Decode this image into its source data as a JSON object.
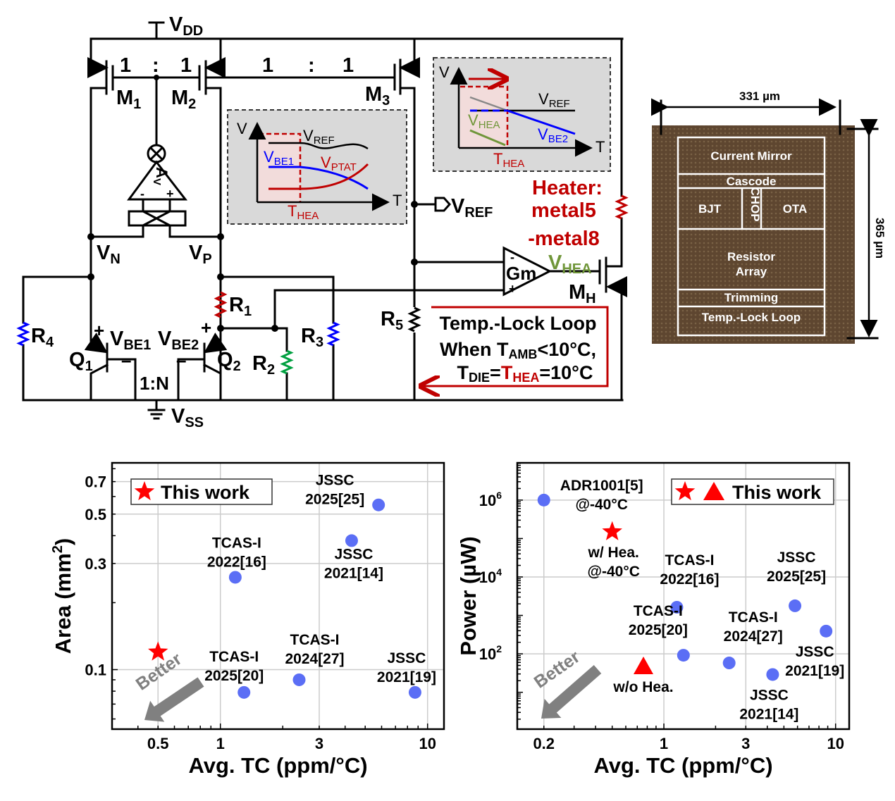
{
  "circuit": {
    "vdd": {
      "m": "V",
      "s": "DD"
    },
    "vss": {
      "m": "V",
      "s": "SS"
    },
    "ratio_left": [
      "1",
      ":",
      "1"
    ],
    "ratio_right": [
      "1",
      ":",
      "1"
    ],
    "m1": {
      "m": "M",
      "s": "1"
    },
    "m2": {
      "m": "M",
      "s": "2"
    },
    "m3": {
      "m": "M",
      "s": "3"
    },
    "mh": {
      "m": "M",
      "s": "H"
    },
    "amp": {
      "m": "A",
      "s": "V",
      "minus": "-",
      "plus": "+"
    },
    "vn": {
      "m": "V",
      "s": "N"
    },
    "vp": {
      "m": "V",
      "s": "P"
    },
    "r1": {
      "m": "R",
      "s": "1"
    },
    "r2": {
      "m": "R",
      "s": "2"
    },
    "r3": {
      "m": "R",
      "s": "3"
    },
    "r4": {
      "m": "R",
      "s": "4"
    },
    "r5": {
      "m": "R",
      "s": "5"
    },
    "q1": {
      "m": "Q",
      "s": "1"
    },
    "q2": {
      "m": "Q",
      "s": "2"
    },
    "vbe1": {
      "plus": "+",
      "m": "V",
      "s": "BE1",
      "minus": "–"
    },
    "vbe2": {
      "plus": "+",
      "m": "V",
      "s": "BE2",
      "minus": "–"
    },
    "bjt_ratio": "1:N",
    "vref_out": {
      "m": "V",
      "s": "REF"
    },
    "gm": {
      "label": "Gm",
      "minus": "-",
      "plus": "+"
    },
    "vhea": {
      "m": "V",
      "s": "HEA"
    },
    "heater": [
      "Heater:",
      "metal5",
      "-metal8"
    ],
    "loop": {
      "title": "Temp.-Lock Loop",
      "line2": {
        "a": "When T",
        "sub": "AMB",
        "b": "<10°C,"
      },
      "line3": {
        "a": "T",
        "sub1": "DIE",
        "eq": "=",
        "t": "T",
        "sub2": "HEA",
        "b": "=10°C"
      }
    },
    "inset1": {
      "v": "V",
      "t": "T",
      "vref": {
        "m": "V",
        "s": "REF"
      },
      "vbe1": {
        "m": "V",
        "s": "BE1"
      },
      "vptat": {
        "m": "V",
        "s": "PTAT"
      },
      "thea": {
        "m": "T",
        "s": "HEA"
      }
    },
    "inset2": {
      "v": "V",
      "t": "T",
      "vref": {
        "m": "V",
        "s": "REF"
      },
      "vhea": {
        "m": "V",
        "s": "HEA"
      },
      "vbe2": {
        "m": "V",
        "s": "BE2"
      },
      "thea": {
        "m": "T",
        "s": "HEA"
      }
    },
    "colors": {
      "heater": "#c00000",
      "ptat": "#c00000",
      "vbe": "#0000ff",
      "vhea": "#70963a",
      "inset_bg": "#d9d9d9"
    }
  },
  "die": {
    "width_label": "331 µm",
    "height_label": "365 µm",
    "blocks": [
      "Current Mirror",
      "Cascode",
      "BJT",
      "CHOP",
      "OTA",
      "Resistor",
      "Array",
      "Trimming",
      "Temp.-Lock Loop"
    ]
  },
  "chart_data": [
    {
      "type": "scatter",
      "xlabel": "Avg. TC (ppm/°C)",
      "ylabel": "Area (mm",
      "ylabel_sup": "2",
      "ylabel_end": ")",
      "xscale": "log",
      "yscale": "log",
      "xlim": [
        0.3,
        12
      ],
      "ylim": [
        0.054,
        0.85
      ],
      "xticks": [
        0.5,
        1,
        3,
        10
      ],
      "xtick_labels": [
        "0.5",
        "1",
        "3",
        "10"
      ],
      "yticks": [
        0.1,
        0.3,
        0.5,
        0.7
      ],
      "ytick_labels": [
        "0.1",
        "0.3",
        "0.5",
        "0.7"
      ],
      "grid": true,
      "legend": {
        "position": "top-left",
        "label": "This work"
      },
      "arrow_text": "Better",
      "points": [
        {
          "x": 0.5,
          "y": 0.12,
          "marker": "star",
          "color": "#ff0000",
          "label": []
        },
        {
          "x": 1.18,
          "y": 0.26,
          "marker": "circle",
          "color": "#5b6ef5",
          "label": [
            "TCAS-I",
            "2022[16]"
          ]
        },
        {
          "x": 4.3,
          "y": 0.38,
          "marker": "circle",
          "color": "#5b6ef5",
          "label": [
            "JSSC",
            "2021[14]"
          ]
        },
        {
          "x": 5.8,
          "y": 0.55,
          "marker": "circle",
          "color": "#5b6ef5",
          "label": [
            "JSSC",
            "2025[25]"
          ]
        },
        {
          "x": 1.3,
          "y": 0.079,
          "marker": "circle",
          "color": "#5b6ef5",
          "label": [
            "TCAS-I",
            "2025[20]"
          ]
        },
        {
          "x": 2.4,
          "y": 0.09,
          "marker": "circle",
          "color": "#5b6ef5",
          "label": [
            "TCAS-I",
            "2024[27]"
          ]
        },
        {
          "x": 8.7,
          "y": 0.079,
          "marker": "circle",
          "color": "#5b6ef5",
          "label": [
            "JSSC",
            "2021[19]"
          ]
        }
      ]
    },
    {
      "type": "scatter",
      "xlabel": "Avg. TC (ppm/°C)",
      "ylabel": "Power (µW)",
      "xscale": "log",
      "yscale": "log",
      "xlim": [
        0.14,
        12
      ],
      "ylim": [
        1.1,
        9300000
      ],
      "xticks": [
        0.2,
        1,
        3,
        10
      ],
      "xtick_labels": [
        "0.2",
        "1",
        "3",
        "10"
      ],
      "yticks": [
        100,
        10000,
        1000000
      ],
      "ytick_labels": [
        {
          "base": "10",
          "exp": "2"
        },
        {
          "base": "10",
          "exp": "4"
        },
        {
          "base": "10",
          "exp": "6"
        }
      ],
      "grid": true,
      "legend": {
        "position": "top-right",
        "label": "This work"
      },
      "arrow_text": "Better",
      "points": [
        {
          "x": 0.2,
          "y": 1000000,
          "marker": "circle",
          "color": "#5b6ef5",
          "label": [
            "ADR1001[5]",
            "@-40°C"
          ]
        },
        {
          "x": 0.5,
          "y": 150000,
          "marker": "star",
          "color": "#ff0000",
          "label": [
            "w/ Hea.",
            "@-40°C"
          ]
        },
        {
          "x": 0.76,
          "y": 47,
          "marker": "triangle",
          "color": "#ff0000",
          "label": [
            "w/o Hea."
          ]
        },
        {
          "x": 1.19,
          "y": 1630,
          "marker": "circle",
          "color": "#5b6ef5",
          "label": [
            "TCAS-I",
            "2022[16]"
          ]
        },
        {
          "x": 5.8,
          "y": 1780,
          "marker": "circle",
          "color": "#5b6ef5",
          "label": [
            "JSSC",
            "2025[25]"
          ]
        },
        {
          "x": 8.8,
          "y": 390,
          "marker": "circle",
          "color": "#5b6ef5",
          "label": [
            "JSSC",
            "2021[19]"
          ]
        },
        {
          "x": 1.3,
          "y": 92,
          "marker": "circle",
          "color": "#5b6ef5",
          "label": [
            "TCAS-I",
            "2025[20]"
          ]
        },
        {
          "x": 2.4,
          "y": 58,
          "marker": "circle",
          "color": "#5b6ef5",
          "label": [
            "TCAS-I",
            "2024[27]"
          ]
        },
        {
          "x": 4.3,
          "y": 29,
          "marker": "circle",
          "color": "#5b6ef5",
          "label": [
            "JSSC",
            "2021[14]"
          ]
        }
      ]
    }
  ]
}
